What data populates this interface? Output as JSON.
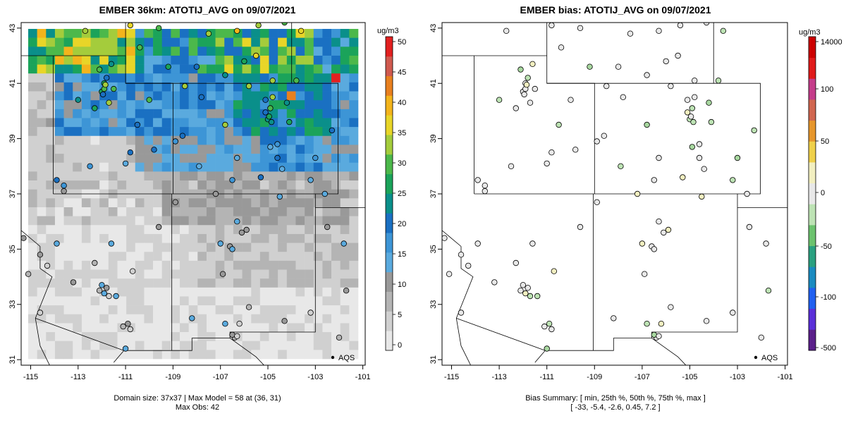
{
  "panels": [
    {
      "title": "EMBER 36km: ATOTIJ_AVG on 09/07/2021",
      "caption_line1": "Domain size: 37x37 | Max Model = 58 at (36, 31)",
      "caption_line2": "Max Obs: 42",
      "legend_label": "AQS",
      "colorbar_unit": "ug/m3",
      "colorbar_ticks": [
        "50",
        "45",
        "40",
        "35",
        "30",
        "25",
        "20",
        "15",
        "10",
        "5",
        "0"
      ],
      "x_ticks": [
        "-115",
        "-113",
        "-111",
        "-109",
        "-107",
        "-105",
        "-103",
        "-101"
      ],
      "y_ticks": [
        "43",
        "41",
        "39",
        "37",
        "35",
        "33",
        "31"
      ]
    },
    {
      "title": "EMBER bias: ATOTIJ_AVG on 09/07/2021",
      "caption_line1": "Bias Summary: [ min, 25th %, 50th %, 75th %, max ]",
      "caption_line2": "[ -33,  -5.4,  -2.6,  0.45,  7.2 ]",
      "legend_label": "AQS",
      "colorbar_unit": "ug/m3",
      "colorbar_ticks": [
        "14000",
        "100",
        "50",
        "0",
        "-50",
        "-100",
        "-500"
      ],
      "x_ticks": [
        "-115",
        "-113",
        "-111",
        "-109",
        "-107",
        "-105",
        "-103",
        "-101"
      ],
      "y_ticks": [
        "43",
        "41",
        "39",
        "37",
        "35",
        "33",
        "31"
      ]
    }
  ],
  "colors": {
    "scale_pm": [
      "#e8e8e8",
      "#d0d0d0",
      "#b4b4b4",
      "#999999",
      "#5aaade",
      "#3d95d6",
      "#1a70c2",
      "#0a8f8a",
      "#1ba35a",
      "#4cb84b",
      "#a4cc3c",
      "#e8d528",
      "#f3b41c",
      "#e8801f",
      "#d05a4f",
      "#e22020"
    ],
    "scale_bias": [
      "#5b1f8a",
      "#5a2fd8",
      "#2060f0",
      "#1a8bc0",
      "#2aa080",
      "#6cc26e",
      "#bde3b4",
      "#e8e8e8",
      "#f2efc0",
      "#efd04a",
      "#e6962c",
      "#d06650",
      "#c43c8a",
      "#e01a1a",
      "#cc0000"
    ]
  }
}
